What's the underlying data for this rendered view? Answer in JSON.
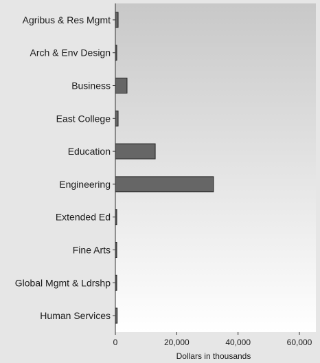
{
  "chart_data": {
    "type": "bar",
    "orientation": "horizontal",
    "categories": [
      "Agribus & Res Mgmt",
      "Arch & Env Design",
      "Business",
      "East College",
      "Education",
      "Engineering",
      "Extended Ed",
      "Fine Arts",
      "Global Mgmt & Ldrshp",
      "Human Services"
    ],
    "values": [
      900,
      300,
      3800,
      900,
      13000,
      32000,
      200,
      400,
      300,
      600
    ],
    "xlabel": "Dollars in thousands",
    "ylabel": "",
    "xlim": [
      0,
      65000
    ],
    "xticks": [
      0,
      20000,
      40000,
      60000
    ],
    "xtick_labels": [
      "0",
      "20,000",
      "40,000",
      "60,000"
    ],
    "grid": false,
    "legend": "none",
    "colors": {
      "bar": "#666666",
      "bar_stroke": "#222222",
      "axis": "#333333",
      "plot_bg_top": "#c8c8c8",
      "plot_bg_bottom": "#ffffff",
      "page_bg": "#e6e6e6"
    }
  }
}
